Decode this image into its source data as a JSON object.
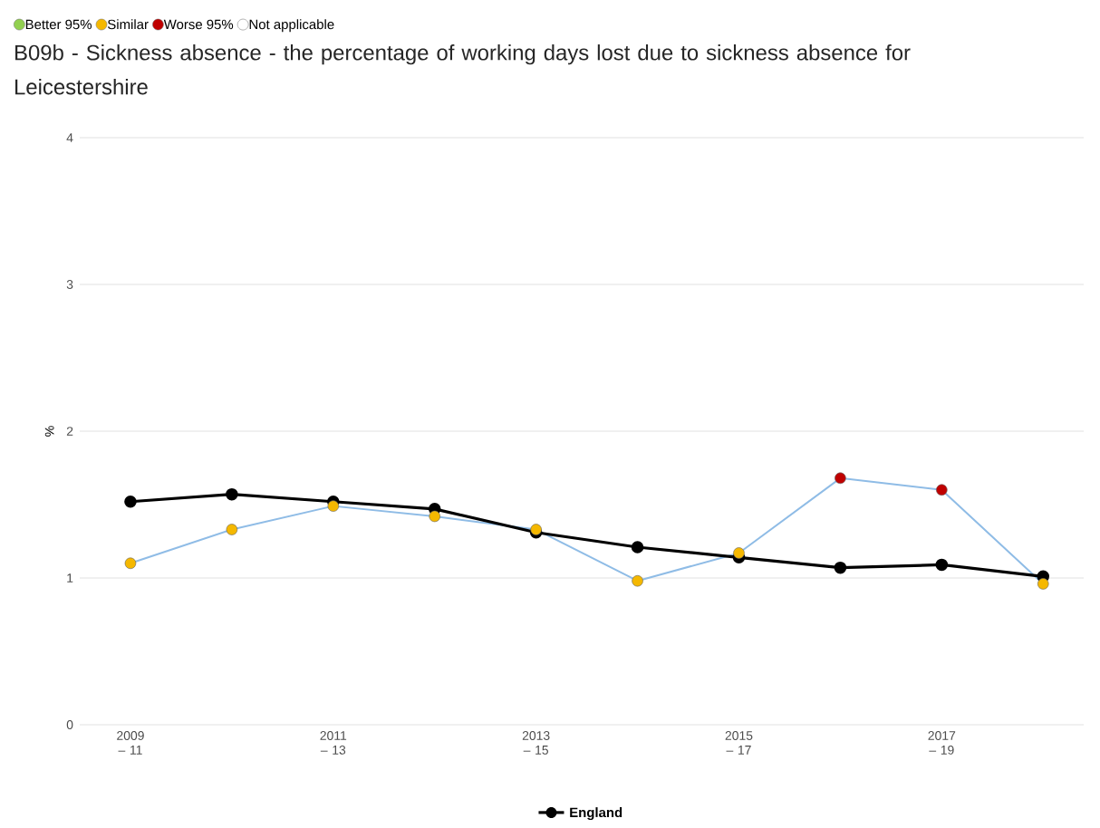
{
  "chart_data": {
    "type": "line",
    "title": "B09b - Sickness absence - the percentage of working days lost due to sickness absence for Leicestershire",
    "ylabel": "%",
    "categories": [
      "2009 – 11",
      null,
      "2011 – 13",
      null,
      "2013 – 15",
      null,
      "2015 – 17",
      null,
      "2017 – 19",
      null
    ],
    "series": [
      {
        "color": "#8fbce6",
        "marker": "none",
        "values": [
          1.1,
          1.33,
          1.49,
          1.42,
          1.33,
          0.98,
          1.17,
          1.68,
          1.6,
          0.96
        ]
      },
      {
        "name": "England",
        "color": "#000000",
        "marker": "circle",
        "values": [
          1.52,
          1.57,
          1.52,
          1.47,
          1.31,
          1.21,
          1.14,
          1.07,
          1.09,
          1.01
        ]
      },
      {
        "name": "Better 95%",
        "color": "#92d050",
        "type": "scatter",
        "marker": "circle",
        "values": [
          null,
          null,
          null,
          null,
          null,
          null,
          null,
          null,
          null,
          null
        ]
      },
      {
        "name": "Similar",
        "color": "#f5b800",
        "type": "scatter",
        "marker": "circle",
        "values": [
          1.1,
          1.33,
          1.49,
          1.42,
          1.33,
          0.98,
          1.17,
          null,
          null,
          0.96
        ]
      },
      {
        "name": "Worse 95%",
        "color": "#c00000",
        "type": "scatter",
        "marker": "circle",
        "values": [
          null,
          null,
          null,
          null,
          null,
          null,
          null,
          1.68,
          1.6,
          null
        ]
      },
      {
        "name": "Not applicable",
        "color": "#ffffff",
        "type": "scatter",
        "marker": "circle",
        "values": [
          null,
          null,
          null,
          null,
          null,
          null,
          null,
          null,
          null,
          null
        ]
      }
    ],
    "ylim": [
      0,
      4
    ],
    "yticks": [
      0,
      1,
      2,
      3,
      4
    ],
    "grid": "y",
    "legend": "top left"
  }
}
